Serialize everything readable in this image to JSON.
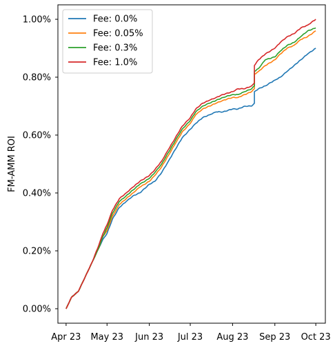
{
  "chart_data": {
    "type": "line",
    "title": "",
    "xlabel": "",
    "ylabel": "FM-AMM ROI",
    "x_ticks": [
      "Apr 23",
      "May 23",
      "Jun 23",
      "Jul 23",
      "Aug 23",
      "Sep 23",
      "Oct 23"
    ],
    "y_ticks": [
      "0.00%",
      "0.20%",
      "0.40%",
      "0.60%",
      "0.80%",
      "1.00%"
    ],
    "ylim": [
      -0.0005,
      0.0105
    ],
    "xlim": [
      "2023-03-26",
      "2023-10-08"
    ],
    "y_format": "percent",
    "grid": false,
    "legend": "top-left",
    "series": [
      {
        "name": "Fee: 0.0%",
        "color": "#1f77b4",
        "points": [
          [
            "2023-04-01",
            0.0
          ],
          [
            "2023-04-05",
            0.0004
          ],
          [
            "2023-04-10",
            0.0006
          ],
          [
            "2023-04-15",
            0.0011
          ],
          [
            "2023-04-20",
            0.0016
          ],
          [
            "2023-04-25",
            0.0021
          ],
          [
            "2023-04-28",
            0.0024
          ],
          [
            "2023-05-01",
            0.0026
          ],
          [
            "2023-05-05",
            0.0031
          ],
          [
            "2023-05-10",
            0.0035
          ],
          [
            "2023-05-15",
            0.0037
          ],
          [
            "2023-05-20",
            0.0039
          ],
          [
            "2023-05-25",
            0.004
          ],
          [
            "2023-06-01",
            0.0043
          ],
          [
            "2023-06-05",
            0.0044
          ],
          [
            "2023-06-10",
            0.0047
          ],
          [
            "2023-06-15",
            0.0051
          ],
          [
            "2023-06-20",
            0.0055
          ],
          [
            "2023-06-25",
            0.0059
          ],
          [
            "2023-07-01",
            0.0062
          ],
          [
            "2023-07-05",
            0.0064
          ],
          [
            "2023-07-10",
            0.0066
          ],
          [
            "2023-07-15",
            0.0067
          ],
          [
            "2023-07-20",
            0.0068
          ],
          [
            "2023-07-25",
            0.0068
          ],
          [
            "2023-08-01",
            0.0069
          ],
          [
            "2023-08-05",
            0.0069
          ],
          [
            "2023-08-10",
            0.007
          ],
          [
            "2023-08-15",
            0.007
          ],
          [
            "2023-08-17",
            0.0071
          ],
          [
            "2023-08-17",
            0.0075
          ],
          [
            "2023-08-20",
            0.0076
          ],
          [
            "2023-08-25",
            0.0077
          ],
          [
            "2023-09-01",
            0.0079
          ],
          [
            "2023-09-05",
            0.008
          ],
          [
            "2023-09-10",
            0.0082
          ],
          [
            "2023-09-15",
            0.0084
          ],
          [
            "2023-09-20",
            0.0086
          ],
          [
            "2023-09-25",
            0.0088
          ],
          [
            "2023-10-01",
            0.009
          ]
        ]
      },
      {
        "name": "Fee: 0.05%",
        "color": "#ff7f0e",
        "points": [
          [
            "2023-04-01",
            0.0
          ],
          [
            "2023-04-05",
            0.0004
          ],
          [
            "2023-04-10",
            0.0006
          ],
          [
            "2023-04-15",
            0.0011
          ],
          [
            "2023-04-20",
            0.0016
          ],
          [
            "2023-04-25",
            0.0021
          ],
          [
            "2023-04-28",
            0.0025
          ],
          [
            "2023-05-01",
            0.0027
          ],
          [
            "2023-05-05",
            0.0032
          ],
          [
            "2023-05-10",
            0.0036
          ],
          [
            "2023-05-15",
            0.0038
          ],
          [
            "2023-05-20",
            0.004
          ],
          [
            "2023-05-25",
            0.0042
          ],
          [
            "2023-06-01",
            0.0044
          ],
          [
            "2023-06-05",
            0.0046
          ],
          [
            "2023-06-10",
            0.0049
          ],
          [
            "2023-06-15",
            0.0053
          ],
          [
            "2023-06-20",
            0.0057
          ],
          [
            "2023-06-25",
            0.0061
          ],
          [
            "2023-07-01",
            0.0064
          ],
          [
            "2023-07-05",
            0.0067
          ],
          [
            "2023-07-10",
            0.0069
          ],
          [
            "2023-07-15",
            0.007
          ],
          [
            "2023-07-20",
            0.0071
          ],
          [
            "2023-07-25",
            0.0072
          ],
          [
            "2023-08-01",
            0.0073
          ],
          [
            "2023-08-05",
            0.0073
          ],
          [
            "2023-08-10",
            0.0074
          ],
          [
            "2023-08-15",
            0.0075
          ],
          [
            "2023-08-17",
            0.0076
          ],
          [
            "2023-08-17",
            0.0081
          ],
          [
            "2023-08-20",
            0.0082
          ],
          [
            "2023-08-25",
            0.0084
          ],
          [
            "2023-09-01",
            0.0086
          ],
          [
            "2023-09-05",
            0.0088
          ],
          [
            "2023-09-10",
            0.009
          ],
          [
            "2023-09-15",
            0.0091
          ],
          [
            "2023-09-20",
            0.0093
          ],
          [
            "2023-09-25",
            0.0094
          ],
          [
            "2023-10-01",
            0.0096
          ]
        ]
      },
      {
        "name": "Fee: 0.3%",
        "color": "#2ca02c",
        "points": [
          [
            "2023-04-01",
            0.0
          ],
          [
            "2023-04-05",
            0.0004
          ],
          [
            "2023-04-10",
            0.0006
          ],
          [
            "2023-04-15",
            0.0011
          ],
          [
            "2023-04-20",
            0.0016
          ],
          [
            "2023-04-25",
            0.0021
          ],
          [
            "2023-04-28",
            0.0025
          ],
          [
            "2023-05-01",
            0.0028
          ],
          [
            "2023-05-05",
            0.0033
          ],
          [
            "2023-05-10",
            0.0037
          ],
          [
            "2023-05-15",
            0.0039
          ],
          [
            "2023-05-20",
            0.0041
          ],
          [
            "2023-05-25",
            0.0043
          ],
          [
            "2023-06-01",
            0.0045
          ],
          [
            "2023-06-05",
            0.0047
          ],
          [
            "2023-06-10",
            0.005
          ],
          [
            "2023-06-15",
            0.0054
          ],
          [
            "2023-06-20",
            0.0058
          ],
          [
            "2023-06-25",
            0.0062
          ],
          [
            "2023-07-01",
            0.0065
          ],
          [
            "2023-07-05",
            0.0068
          ],
          [
            "2023-07-10",
            0.007
          ],
          [
            "2023-07-15",
            0.0071
          ],
          [
            "2023-07-20",
            0.0072
          ],
          [
            "2023-07-25",
            0.0073
          ],
          [
            "2023-08-01",
            0.0074
          ],
          [
            "2023-08-05",
            0.0074
          ],
          [
            "2023-08-10",
            0.0075
          ],
          [
            "2023-08-15",
            0.0076
          ],
          [
            "2023-08-17",
            0.0077
          ],
          [
            "2023-08-17",
            0.0082
          ],
          [
            "2023-08-20",
            0.0083
          ],
          [
            "2023-08-25",
            0.0086
          ],
          [
            "2023-09-01",
            0.0087
          ],
          [
            "2023-09-05",
            0.0089
          ],
          [
            "2023-09-10",
            0.0091
          ],
          [
            "2023-09-15",
            0.0092
          ],
          [
            "2023-09-20",
            0.0094
          ],
          [
            "2023-09-25",
            0.0096
          ],
          [
            "2023-10-01",
            0.0097
          ]
        ]
      },
      {
        "name": "Fee: 1.0%",
        "color": "#d62728",
        "points": [
          [
            "2023-04-01",
            0.0
          ],
          [
            "2023-04-05",
            0.0004
          ],
          [
            "2023-04-10",
            0.0006
          ],
          [
            "2023-04-15",
            0.0011
          ],
          [
            "2023-04-20",
            0.0016
          ],
          [
            "2023-04-25",
            0.0022
          ],
          [
            "2023-04-28",
            0.0026
          ],
          [
            "2023-05-01",
            0.0029
          ],
          [
            "2023-05-05",
            0.0034
          ],
          [
            "2023-05-10",
            0.0038
          ],
          [
            "2023-05-15",
            0.004
          ],
          [
            "2023-05-20",
            0.0042
          ],
          [
            "2023-05-25",
            0.0044
          ],
          [
            "2023-06-01",
            0.0046
          ],
          [
            "2023-06-05",
            0.0048
          ],
          [
            "2023-06-10",
            0.0051
          ],
          [
            "2023-06-15",
            0.0055
          ],
          [
            "2023-06-20",
            0.0059
          ],
          [
            "2023-06-25",
            0.0063
          ],
          [
            "2023-07-01",
            0.0066
          ],
          [
            "2023-07-05",
            0.0069
          ],
          [
            "2023-07-10",
            0.0071
          ],
          [
            "2023-07-15",
            0.0072
          ],
          [
            "2023-07-20",
            0.0073
          ],
          [
            "2023-07-25",
            0.0074
          ],
          [
            "2023-08-01",
            0.0075
          ],
          [
            "2023-08-05",
            0.0076
          ],
          [
            "2023-08-10",
            0.0076
          ],
          [
            "2023-08-15",
            0.0077
          ],
          [
            "2023-08-17",
            0.0078
          ],
          [
            "2023-08-17",
            0.0084
          ],
          [
            "2023-08-20",
            0.0086
          ],
          [
            "2023-08-25",
            0.0088
          ],
          [
            "2023-09-01",
            0.009
          ],
          [
            "2023-09-05",
            0.0092
          ],
          [
            "2023-09-10",
            0.0094
          ],
          [
            "2023-09-15",
            0.0095
          ],
          [
            "2023-09-20",
            0.0097
          ],
          [
            "2023-09-25",
            0.0098
          ],
          [
            "2023-10-01",
            0.01
          ]
        ]
      }
    ]
  }
}
